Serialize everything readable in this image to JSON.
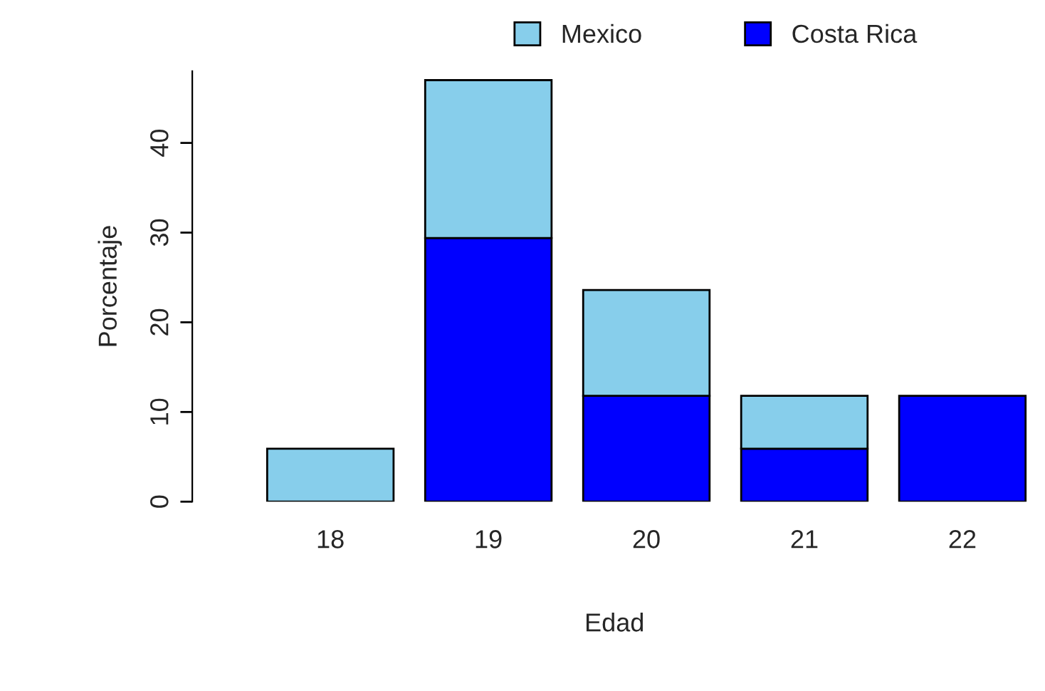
{
  "chart_data": {
    "type": "bar",
    "stacked": true,
    "xlabel": "Edad",
    "ylabel": "Porcentaje",
    "categories": [
      "18",
      "19",
      "20",
      "21",
      "22"
    ],
    "series": [
      {
        "name": "Costa Rica",
        "color": "#0000ff",
        "values": [
          0,
          29.4,
          11.8,
          5.9,
          11.8
        ]
      },
      {
        "name": "Mexico",
        "color": "#87ceeb",
        "values": [
          5.9,
          17.6,
          11.8,
          5.9,
          0
        ]
      }
    ],
    "ylim": [
      0,
      48
    ],
    "yticks": [
      0,
      10,
      20,
      30,
      40
    ],
    "grid": false,
    "legend": "top"
  }
}
